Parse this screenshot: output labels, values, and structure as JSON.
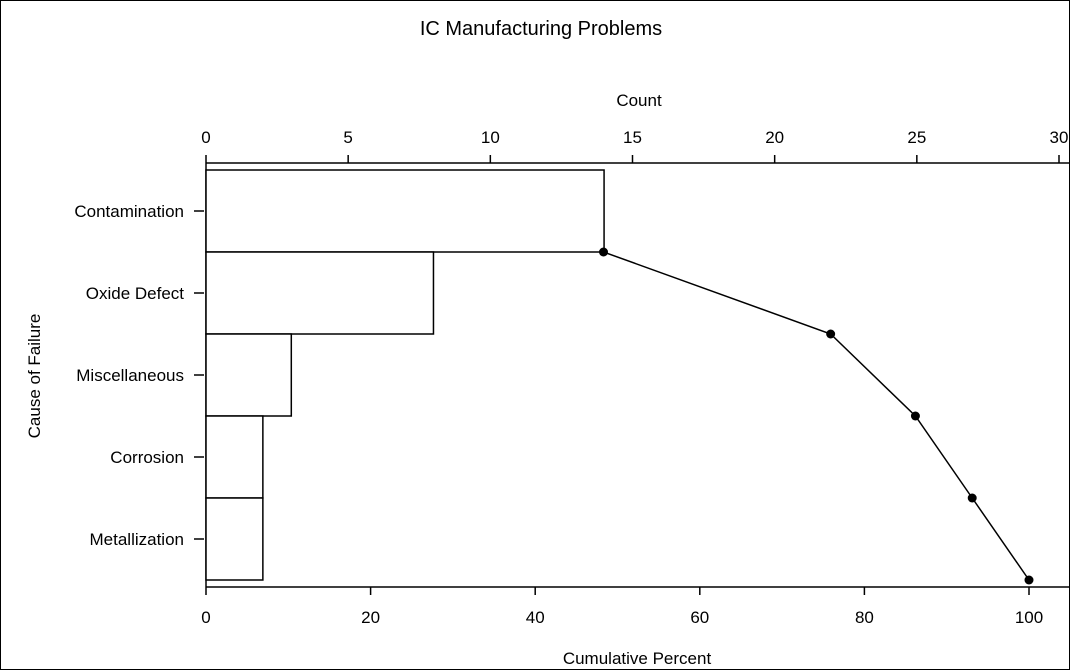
{
  "chart_data": {
    "type": "bar",
    "orientation": "horizontal",
    "title": "IC Manufacturing Problems",
    "top_axis": {
      "label": "Count",
      "range": [
        0,
        30
      ],
      "ticks": [
        0,
        5,
        10,
        15,
        20,
        25,
        30
      ]
    },
    "bottom_axis": {
      "label": "Cumulative Percent",
      "range": [
        0,
        104.7
      ],
      "ticks": [
        0,
        20,
        40,
        60,
        80,
        100
      ]
    },
    "ylabel": "Cause of Failure",
    "categories": [
      "Contamination",
      "Oxide Defect",
      "Miscellaneous",
      "Corrosion",
      "Metallization"
    ],
    "counts": [
      14,
      8,
      3,
      2,
      2
    ],
    "cumulative_percent": [
      48.3,
      75.9,
      86.2,
      93.1,
      100
    ],
    "grid": false,
    "legend": "none"
  }
}
